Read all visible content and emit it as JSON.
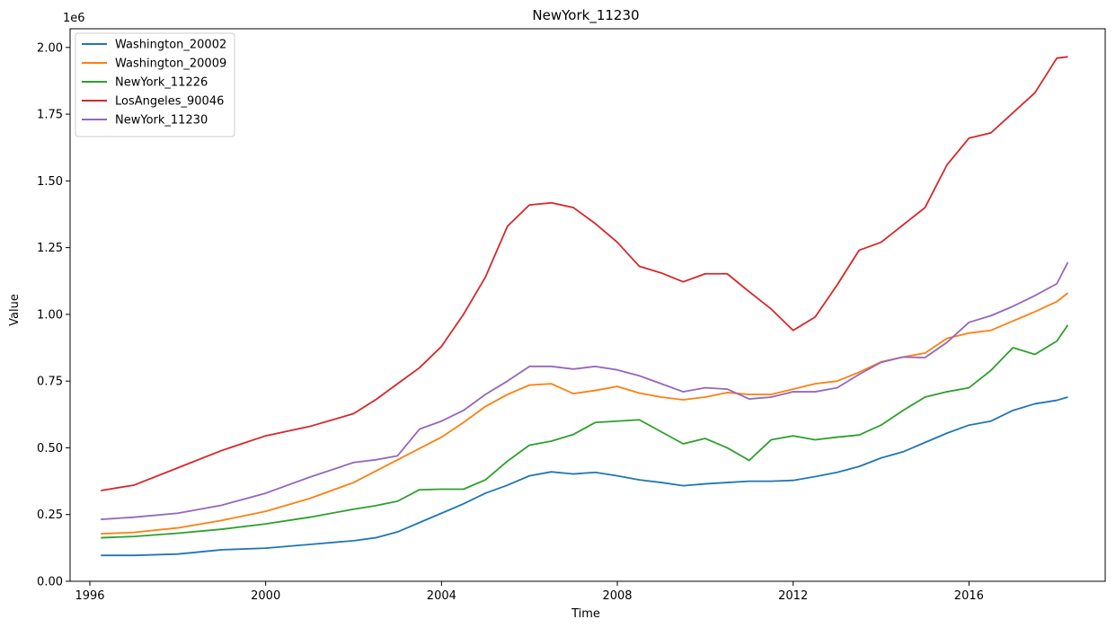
{
  "chart_data": {
    "type": "line",
    "title": "NewYork_11230",
    "xlabel": "Time",
    "ylabel": "Value",
    "y_offset_label": "1e6",
    "xlim": [
      1995.55,
      2019.1
    ],
    "ylim": [
      0,
      2.07
    ],
    "x_ticks": [
      1996,
      2000,
      2004,
      2008,
      2012,
      2016
    ],
    "x_tick_labels": [
      "1996",
      "2000",
      "2004",
      "2008",
      "2012",
      "2016"
    ],
    "y_ticks": [
      0,
      0.25,
      0.5,
      0.75,
      1.0,
      1.25,
      1.5,
      1.75,
      2.0
    ],
    "y_tick_labels": [
      "0.00",
      "0.25",
      "0.50",
      "0.75",
      "1.00",
      "1.25",
      "1.50",
      "1.75",
      "2.00"
    ],
    "grid": false,
    "legend_position": "upper-left",
    "series": [
      {
        "name": "Washington_20002",
        "color": "#1f77b4",
        "points": [
          [
            1996.25,
            0.097
          ],
          [
            1997.0,
            0.097
          ],
          [
            1998.0,
            0.102
          ],
          [
            1999.0,
            0.118
          ],
          [
            2000.0,
            0.124
          ],
          [
            2001.0,
            0.138
          ],
          [
            2002.0,
            0.152
          ],
          [
            2002.5,
            0.163
          ],
          [
            2003.0,
            0.185
          ],
          [
            2003.5,
            0.22
          ],
          [
            2004.0,
            0.255
          ],
          [
            2004.5,
            0.29
          ],
          [
            2005.0,
            0.33
          ],
          [
            2005.5,
            0.36
          ],
          [
            2006.0,
            0.395
          ],
          [
            2006.5,
            0.41
          ],
          [
            2007.0,
            0.402
          ],
          [
            2007.5,
            0.408
          ],
          [
            2008.0,
            0.395
          ],
          [
            2008.5,
            0.38
          ],
          [
            2009.0,
            0.37
          ],
          [
            2009.5,
            0.358
          ],
          [
            2010.0,
            0.365
          ],
          [
            2010.5,
            0.37
          ],
          [
            2011.0,
            0.375
          ],
          [
            2011.5,
            0.375
          ],
          [
            2012.0,
            0.378
          ],
          [
            2012.5,
            0.392
          ],
          [
            2013.0,
            0.408
          ],
          [
            2013.5,
            0.43
          ],
          [
            2014.0,
            0.462
          ],
          [
            2014.5,
            0.485
          ],
          [
            2015.0,
            0.52
          ],
          [
            2015.5,
            0.555
          ],
          [
            2016.0,
            0.585
          ],
          [
            2016.5,
            0.6
          ],
          [
            2017.0,
            0.64
          ],
          [
            2017.5,
            0.665
          ],
          [
            2018.0,
            0.678
          ],
          [
            2018.25,
            0.69
          ]
        ]
      },
      {
        "name": "Washington_20009",
        "color": "#ff7f0e",
        "points": [
          [
            1996.25,
            0.178
          ],
          [
            1997.0,
            0.183
          ],
          [
            1998.0,
            0.2
          ],
          [
            1999.0,
            0.228
          ],
          [
            2000.0,
            0.262
          ],
          [
            2001.0,
            0.31
          ],
          [
            2002.0,
            0.37
          ],
          [
            2003.0,
            0.455
          ],
          [
            2004.0,
            0.54
          ],
          [
            2004.5,
            0.595
          ],
          [
            2005.0,
            0.655
          ],
          [
            2005.5,
            0.7
          ],
          [
            2006.0,
            0.735
          ],
          [
            2006.5,
            0.74
          ],
          [
            2007.0,
            0.703
          ],
          [
            2007.5,
            0.715
          ],
          [
            2008.0,
            0.73
          ],
          [
            2008.5,
            0.705
          ],
          [
            2009.0,
            0.69
          ],
          [
            2009.5,
            0.68
          ],
          [
            2010.0,
            0.69
          ],
          [
            2010.5,
            0.707
          ],
          [
            2011.0,
            0.7
          ],
          [
            2011.5,
            0.7
          ],
          [
            2012.0,
            0.72
          ],
          [
            2012.5,
            0.74
          ],
          [
            2013.0,
            0.75
          ],
          [
            2013.5,
            0.783
          ],
          [
            2014.0,
            0.822
          ],
          [
            2014.5,
            0.84
          ],
          [
            2015.0,
            0.855
          ],
          [
            2015.5,
            0.91
          ],
          [
            2016.0,
            0.93
          ],
          [
            2016.5,
            0.94
          ],
          [
            2017.0,
            0.975
          ],
          [
            2017.5,
            1.01
          ],
          [
            2018.0,
            1.048
          ],
          [
            2018.25,
            1.08
          ]
        ]
      },
      {
        "name": "NewYork_11226",
        "color": "#2ca02c",
        "points": [
          [
            1996.25,
            0.163
          ],
          [
            1997.0,
            0.168
          ],
          [
            1998.0,
            0.18
          ],
          [
            1999.0,
            0.195
          ],
          [
            2000.0,
            0.215
          ],
          [
            2001.0,
            0.24
          ],
          [
            2002.0,
            0.27
          ],
          [
            2002.5,
            0.283
          ],
          [
            2003.0,
            0.3
          ],
          [
            2003.5,
            0.343
          ],
          [
            2004.0,
            0.345
          ],
          [
            2004.5,
            0.345
          ],
          [
            2005.0,
            0.38
          ],
          [
            2005.5,
            0.45
          ],
          [
            2006.0,
            0.51
          ],
          [
            2006.5,
            0.525
          ],
          [
            2007.0,
            0.55
          ],
          [
            2007.5,
            0.595
          ],
          [
            2008.0,
            0.6
          ],
          [
            2008.5,
            0.605
          ],
          [
            2009.0,
            0.56
          ],
          [
            2009.5,
            0.515
          ],
          [
            2010.0,
            0.535
          ],
          [
            2010.5,
            0.5
          ],
          [
            2011.0,
            0.453
          ],
          [
            2011.5,
            0.53
          ],
          [
            2012.0,
            0.545
          ],
          [
            2012.5,
            0.53
          ],
          [
            2013.0,
            0.54
          ],
          [
            2013.5,
            0.548
          ],
          [
            2014.0,
            0.585
          ],
          [
            2014.5,
            0.64
          ],
          [
            2015.0,
            0.69
          ],
          [
            2015.5,
            0.71
          ],
          [
            2016.0,
            0.725
          ],
          [
            2016.5,
            0.79
          ],
          [
            2017.0,
            0.875
          ],
          [
            2017.5,
            0.85
          ],
          [
            2018.0,
            0.9
          ],
          [
            2018.25,
            0.96
          ]
        ]
      },
      {
        "name": "LosAngeles_90046",
        "color": "#d62728",
        "points": [
          [
            1996.25,
            0.34
          ],
          [
            1997.0,
            0.36
          ],
          [
            1998.0,
            0.425
          ],
          [
            1999.0,
            0.49
          ],
          [
            2000.0,
            0.545
          ],
          [
            2001.0,
            0.58
          ],
          [
            2002.0,
            0.628
          ],
          [
            2002.5,
            0.68
          ],
          [
            2003.0,
            0.74
          ],
          [
            2003.5,
            0.8
          ],
          [
            2004.0,
            0.88
          ],
          [
            2004.5,
            1.0
          ],
          [
            2005.0,
            1.14
          ],
          [
            2005.5,
            1.33
          ],
          [
            2006.0,
            1.41
          ],
          [
            2006.5,
            1.418
          ],
          [
            2007.0,
            1.4
          ],
          [
            2007.5,
            1.34
          ],
          [
            2008.0,
            1.27
          ],
          [
            2008.5,
            1.18
          ],
          [
            2009.0,
            1.155
          ],
          [
            2009.5,
            1.122
          ],
          [
            2010.0,
            1.152
          ],
          [
            2010.5,
            1.152
          ],
          [
            2011.0,
            1.085
          ],
          [
            2011.5,
            1.02
          ],
          [
            2012.0,
            0.94
          ],
          [
            2012.5,
            0.99
          ],
          [
            2013.0,
            1.11
          ],
          [
            2013.5,
            1.24
          ],
          [
            2014.0,
            1.27
          ],
          [
            2014.5,
            1.335
          ],
          [
            2015.0,
            1.4
          ],
          [
            2015.5,
            1.56
          ],
          [
            2016.0,
            1.66
          ],
          [
            2016.5,
            1.68
          ],
          [
            2017.0,
            1.755
          ],
          [
            2017.5,
            1.83
          ],
          [
            2018.0,
            1.96
          ],
          [
            2018.25,
            1.965
          ]
        ]
      },
      {
        "name": "NewYork_11230",
        "color": "#9467bd",
        "points": [
          [
            1996.25,
            0.232
          ],
          [
            1997.0,
            0.24
          ],
          [
            1998.0,
            0.255
          ],
          [
            1999.0,
            0.285
          ],
          [
            2000.0,
            0.33
          ],
          [
            2001.0,
            0.39
          ],
          [
            2002.0,
            0.445
          ],
          [
            2002.5,
            0.455
          ],
          [
            2003.0,
            0.47
          ],
          [
            2003.5,
            0.57
          ],
          [
            2004.0,
            0.6
          ],
          [
            2004.5,
            0.64
          ],
          [
            2005.0,
            0.7
          ],
          [
            2005.5,
            0.75
          ],
          [
            2006.0,
            0.805
          ],
          [
            2006.5,
            0.805
          ],
          [
            2007.0,
            0.795
          ],
          [
            2007.5,
            0.805
          ],
          [
            2008.0,
            0.792
          ],
          [
            2008.5,
            0.77
          ],
          [
            2009.0,
            0.74
          ],
          [
            2009.5,
            0.71
          ],
          [
            2010.0,
            0.725
          ],
          [
            2010.5,
            0.72
          ],
          [
            2011.0,
            0.683
          ],
          [
            2011.5,
            0.69
          ],
          [
            2012.0,
            0.71
          ],
          [
            2012.5,
            0.71
          ],
          [
            2013.0,
            0.725
          ],
          [
            2013.5,
            0.775
          ],
          [
            2014.0,
            0.82
          ],
          [
            2014.5,
            0.84
          ],
          [
            2015.0,
            0.838
          ],
          [
            2015.5,
            0.895
          ],
          [
            2016.0,
            0.97
          ],
          [
            2016.5,
            0.995
          ],
          [
            2017.0,
            1.03
          ],
          [
            2017.5,
            1.07
          ],
          [
            2018.0,
            1.115
          ],
          [
            2018.25,
            1.195
          ]
        ]
      }
    ]
  }
}
